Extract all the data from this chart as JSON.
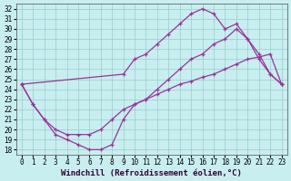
{
  "xlabel": "Windchill (Refroidissement éolien,°C)",
  "xlim": [
    -0.5,
    23.5
  ],
  "ylim": [
    17.5,
    32.5
  ],
  "yticks": [
    18,
    19,
    20,
    21,
    22,
    23,
    24,
    25,
    26,
    27,
    28,
    29,
    30,
    31,
    32
  ],
  "xticks": [
    0,
    1,
    2,
    3,
    4,
    5,
    6,
    7,
    8,
    9,
    10,
    11,
    12,
    13,
    14,
    15,
    16,
    17,
    18,
    19,
    20,
    21,
    22,
    23
  ],
  "line_upper_x": [
    0,
    9,
    10,
    11,
    12,
    13,
    14,
    15,
    16,
    17,
    18,
    19,
    20,
    21,
    22,
    23
  ],
  "line_upper_y": [
    24.5,
    25.5,
    27.0,
    27.5,
    28.5,
    29.5,
    30.5,
    31.5,
    32.0,
    31.5,
    30.0,
    30.5,
    29.0,
    27.0,
    25.5,
    24.5
  ],
  "line_lower_x": [
    0,
    1,
    2,
    3,
    4,
    5,
    6,
    7,
    8,
    9,
    10,
    11,
    12,
    13,
    14,
    15,
    16,
    17,
    18,
    19,
    20,
    21,
    22,
    23
  ],
  "line_lower_y": [
    24.5,
    22.5,
    21.0,
    19.5,
    19.0,
    18.5,
    18.0,
    18.0,
    18.5,
    21.0,
    22.5,
    23.0,
    24.0,
    25.0,
    26.0,
    27.0,
    27.5,
    28.5,
    29.0,
    30.0,
    29.0,
    27.5,
    25.5,
    24.5
  ],
  "line_diag_x": [
    0,
    1,
    2,
    3,
    4,
    5,
    6,
    7,
    8,
    9,
    10,
    11,
    12,
    13,
    14,
    15,
    16,
    17,
    18,
    19,
    20,
    21,
    22,
    23
  ],
  "line_diag_y": [
    24.5,
    22.5,
    21.0,
    20.0,
    19.5,
    19.5,
    19.5,
    20.0,
    21.0,
    22.0,
    22.5,
    23.0,
    23.5,
    24.0,
    24.5,
    24.8,
    25.2,
    25.5,
    26.0,
    26.5,
    27.0,
    27.2,
    27.5,
    24.5
  ],
  "line_color": "#993399",
  "bg_color": "#c8eef0",
  "grid_color": "#99cccc",
  "tick_fontsize": 5.5,
  "xlabel_fontsize": 6.5
}
